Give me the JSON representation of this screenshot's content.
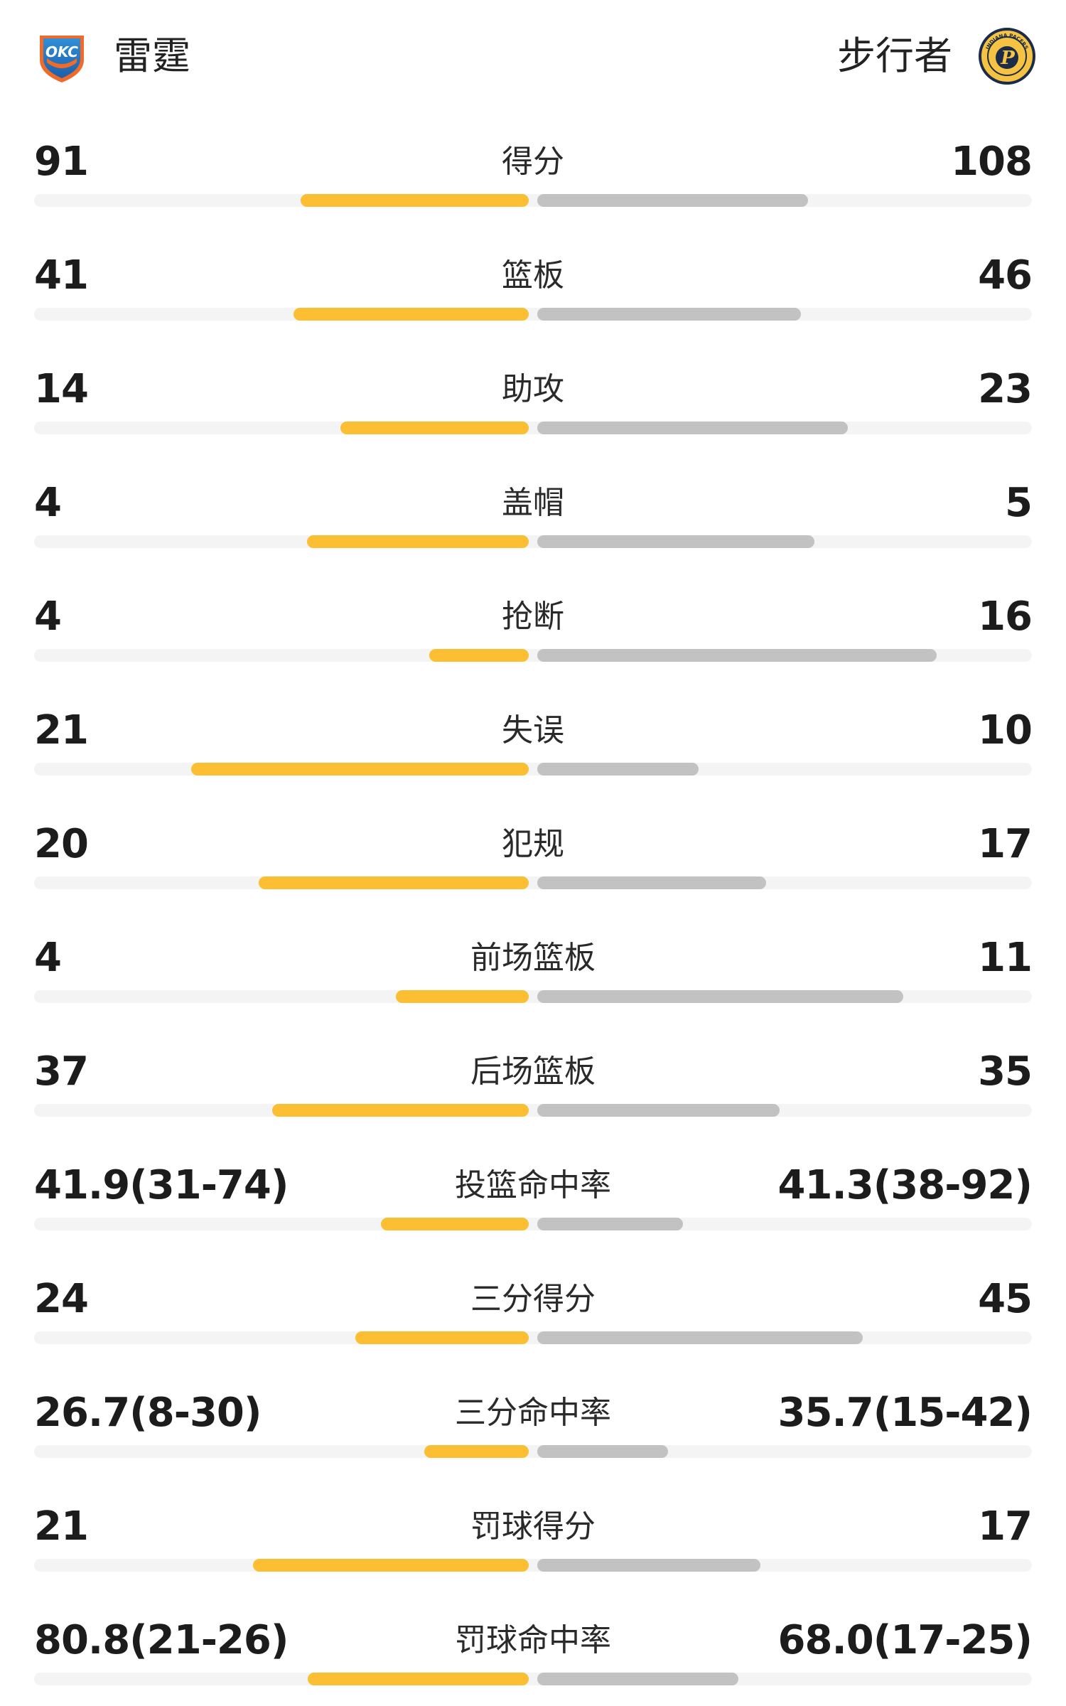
{
  "header": {
    "home_team": "雷霆",
    "away_team": "步行者",
    "home_logo": "okc-thunder-logo",
    "away_logo": "indiana-pacers-logo",
    "home_logo_text": "OKC",
    "away_logo_text": "P",
    "away_logo_ring_text": "INDIANA PACERS"
  },
  "colors": {
    "home_bar": "#fcbe33",
    "away_bar": "#c2c2c2",
    "track": "#f4f4f4"
  },
  "stats": [
    {
      "label": "得分",
      "home": "91",
      "away": "108",
      "home_fill": 0.457,
      "away_fill": 0.543
    },
    {
      "label": "篮板",
      "home": "41",
      "away": "46",
      "home_fill": 0.471,
      "away_fill": 0.529
    },
    {
      "label": "助攻",
      "home": "14",
      "away": "23",
      "home_fill": 0.378,
      "away_fill": 0.622
    },
    {
      "label": "盖帽",
      "home": "4",
      "away": "5",
      "home_fill": 0.444,
      "away_fill": 0.556
    },
    {
      "label": "抢断",
      "home": "4",
      "away": "16",
      "home_fill": 0.2,
      "away_fill": 0.8
    },
    {
      "label": "失误",
      "home": "21",
      "away": "10",
      "home_fill": 0.677,
      "away_fill": 0.323
    },
    {
      "label": "犯规",
      "home": "20",
      "away": "17",
      "home_fill": 0.541,
      "away_fill": 0.459
    },
    {
      "label": "前场篮板",
      "home": "4",
      "away": "11",
      "home_fill": 0.267,
      "away_fill": 0.733
    },
    {
      "label": "后场篮板",
      "home": "37",
      "away": "35",
      "home_fill": 0.514,
      "away_fill": 0.486
    },
    {
      "label": "投篮命中率",
      "home": "41.9(31-74)",
      "away": "41.3(38-92)",
      "home_fill": 0.296,
      "away_fill": 0.292
    },
    {
      "label": "三分得分",
      "home": "24",
      "away": "45",
      "home_fill": 0.348,
      "away_fill": 0.652
    },
    {
      "label": "三分命中率",
      "home": "26.7(8-30)",
      "away": "35.7(15-42)",
      "home_fill": 0.209,
      "away_fill": 0.262
    },
    {
      "label": "罚球得分",
      "home": "21",
      "away": "17",
      "home_fill": 0.553,
      "away_fill": 0.447
    },
    {
      "label": "罚球命中率",
      "home": "80.8(21-26)",
      "away": "68.0(17-25)",
      "home_fill": 0.443,
      "away_fill": 0.403
    }
  ]
}
